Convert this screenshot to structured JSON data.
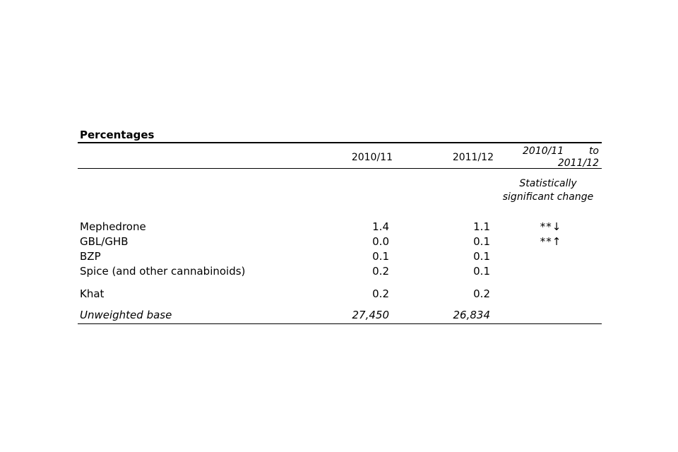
{
  "table": {
    "title": "Percentages",
    "columns": {
      "year1": "2010/11",
      "year2": "2011/12",
      "change_from": "2010/11",
      "change_to_word": "to",
      "change_to": "2011/12",
      "change_note": "Statistically significant change"
    },
    "rows": [
      {
        "label": "Mephedrone",
        "y1": "1.4",
        "y2": "1.1",
        "change": "**↓"
      },
      {
        "label": "GBL/GHB",
        "y1": "0.0",
        "y2": "0.1",
        "change": "**↑"
      },
      {
        "label": "BZP",
        "y1": "0.1",
        "y2": "0.1",
        "change": ""
      },
      {
        "label": "Spice (and other cannabinoids)",
        "y1": "0.2",
        "y2": "0.1",
        "change": ""
      },
      {
        "label": "Khat",
        "y1": "0.2",
        "y2": "0.2",
        "change": ""
      }
    ],
    "base": {
      "label": "Unweighted base",
      "y1": "27,450",
      "y2": "26,834"
    }
  }
}
